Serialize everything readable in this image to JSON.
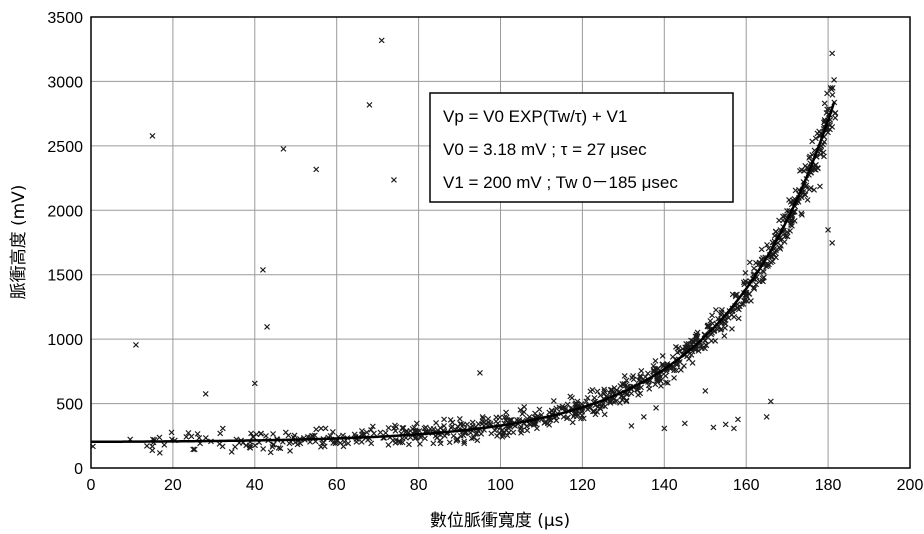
{
  "chart_data": {
    "type": "scatter",
    "xlabel": "數位脈衝寬度 (μs)",
    "ylabel": "脈衝高度 (mV)",
    "xlim": [
      0,
      200
    ],
    "ylim": [
      0,
      3500
    ],
    "x_ticks": [
      0,
      20,
      40,
      60,
      80,
      100,
      120,
      140,
      160,
      180,
      200
    ],
    "y_ticks": [
      0,
      500,
      1000,
      1500,
      2000,
      2500,
      3000,
      3500
    ],
    "grid": true,
    "marker": "x",
    "annotation": {
      "position": "upper-middle",
      "lines": [
        "Vp = V0 EXP(Tw/τ) + V1",
        "V0 = 3.18 mV ; τ = 27 μsec",
        "V1 = 200 mV ; Tw 0－185 μsec"
      ]
    },
    "fit": {
      "formula": "Vp = V0 EXP(Tw/τ) + V1",
      "V0": 3.18,
      "tau": 27,
      "V1": 200,
      "tw_range": [
        0,
        185
      ]
    },
    "outliers": [
      [
        0.5,
        170
      ],
      [
        11,
        960
      ],
      [
        15,
        2580
      ],
      [
        28,
        580
      ],
      [
        40,
        660
      ],
      [
        42,
        1540
      ],
      [
        43,
        1100
      ],
      [
        47,
        2480
      ],
      [
        55,
        2320
      ],
      [
        68,
        2820
      ],
      [
        71,
        3320
      ],
      [
        74,
        2240
      ],
      [
        95,
        740
      ],
      [
        135,
        400
      ],
      [
        140,
        310
      ],
      [
        150,
        600
      ],
      [
        152,
        320
      ],
      [
        155,
        340
      ],
      [
        157,
        310
      ],
      [
        158,
        380
      ],
      [
        165,
        400
      ],
      [
        166,
        520
      ],
      [
        178,
        2190
      ],
      [
        179,
        2420
      ],
      [
        180,
        1850
      ],
      [
        181,
        3220
      ],
      [
        181,
        1750
      ],
      [
        132,
        330
      ],
      [
        145,
        350
      ],
      [
        138,
        470
      ]
    ],
    "dense_band": {
      "x_range": [
        8,
        182
      ],
      "noise_mV": 35,
      "count": 900
    }
  }
}
